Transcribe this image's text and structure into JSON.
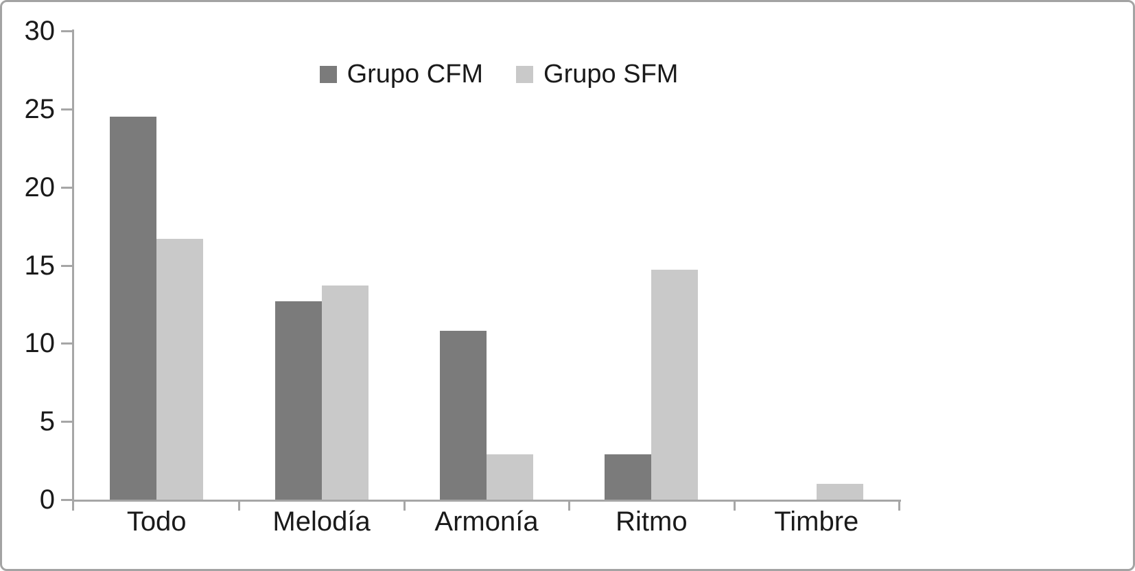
{
  "chart_data": {
    "type": "bar",
    "title": "",
    "xlabel": "",
    "ylabel": "",
    "categories": [
      "Todo",
      "Melodía",
      "Armonía",
      "Ritmo",
      "Timbre"
    ],
    "series": [
      {
        "name": "Grupo CFM",
        "color": "#7b7b7b",
        "values": [
          24.5,
          12.7,
          10.8,
          2.9,
          0
        ]
      },
      {
        "name": "Grupo SFM",
        "color": "#c9c9c9",
        "values": [
          16.7,
          13.7,
          2.9,
          14.7,
          1.0
        ]
      }
    ],
    "ylim": [
      0,
      30
    ],
    "yticks": [
      0,
      5,
      10,
      15,
      20,
      25,
      30
    ],
    "grid": false,
    "legend_position": "top-center",
    "colors": {
      "axis": "#a6a6a6",
      "text": "#1a1a1a",
      "frame_border": "#a3a3a3",
      "background": "#ffffff"
    }
  }
}
